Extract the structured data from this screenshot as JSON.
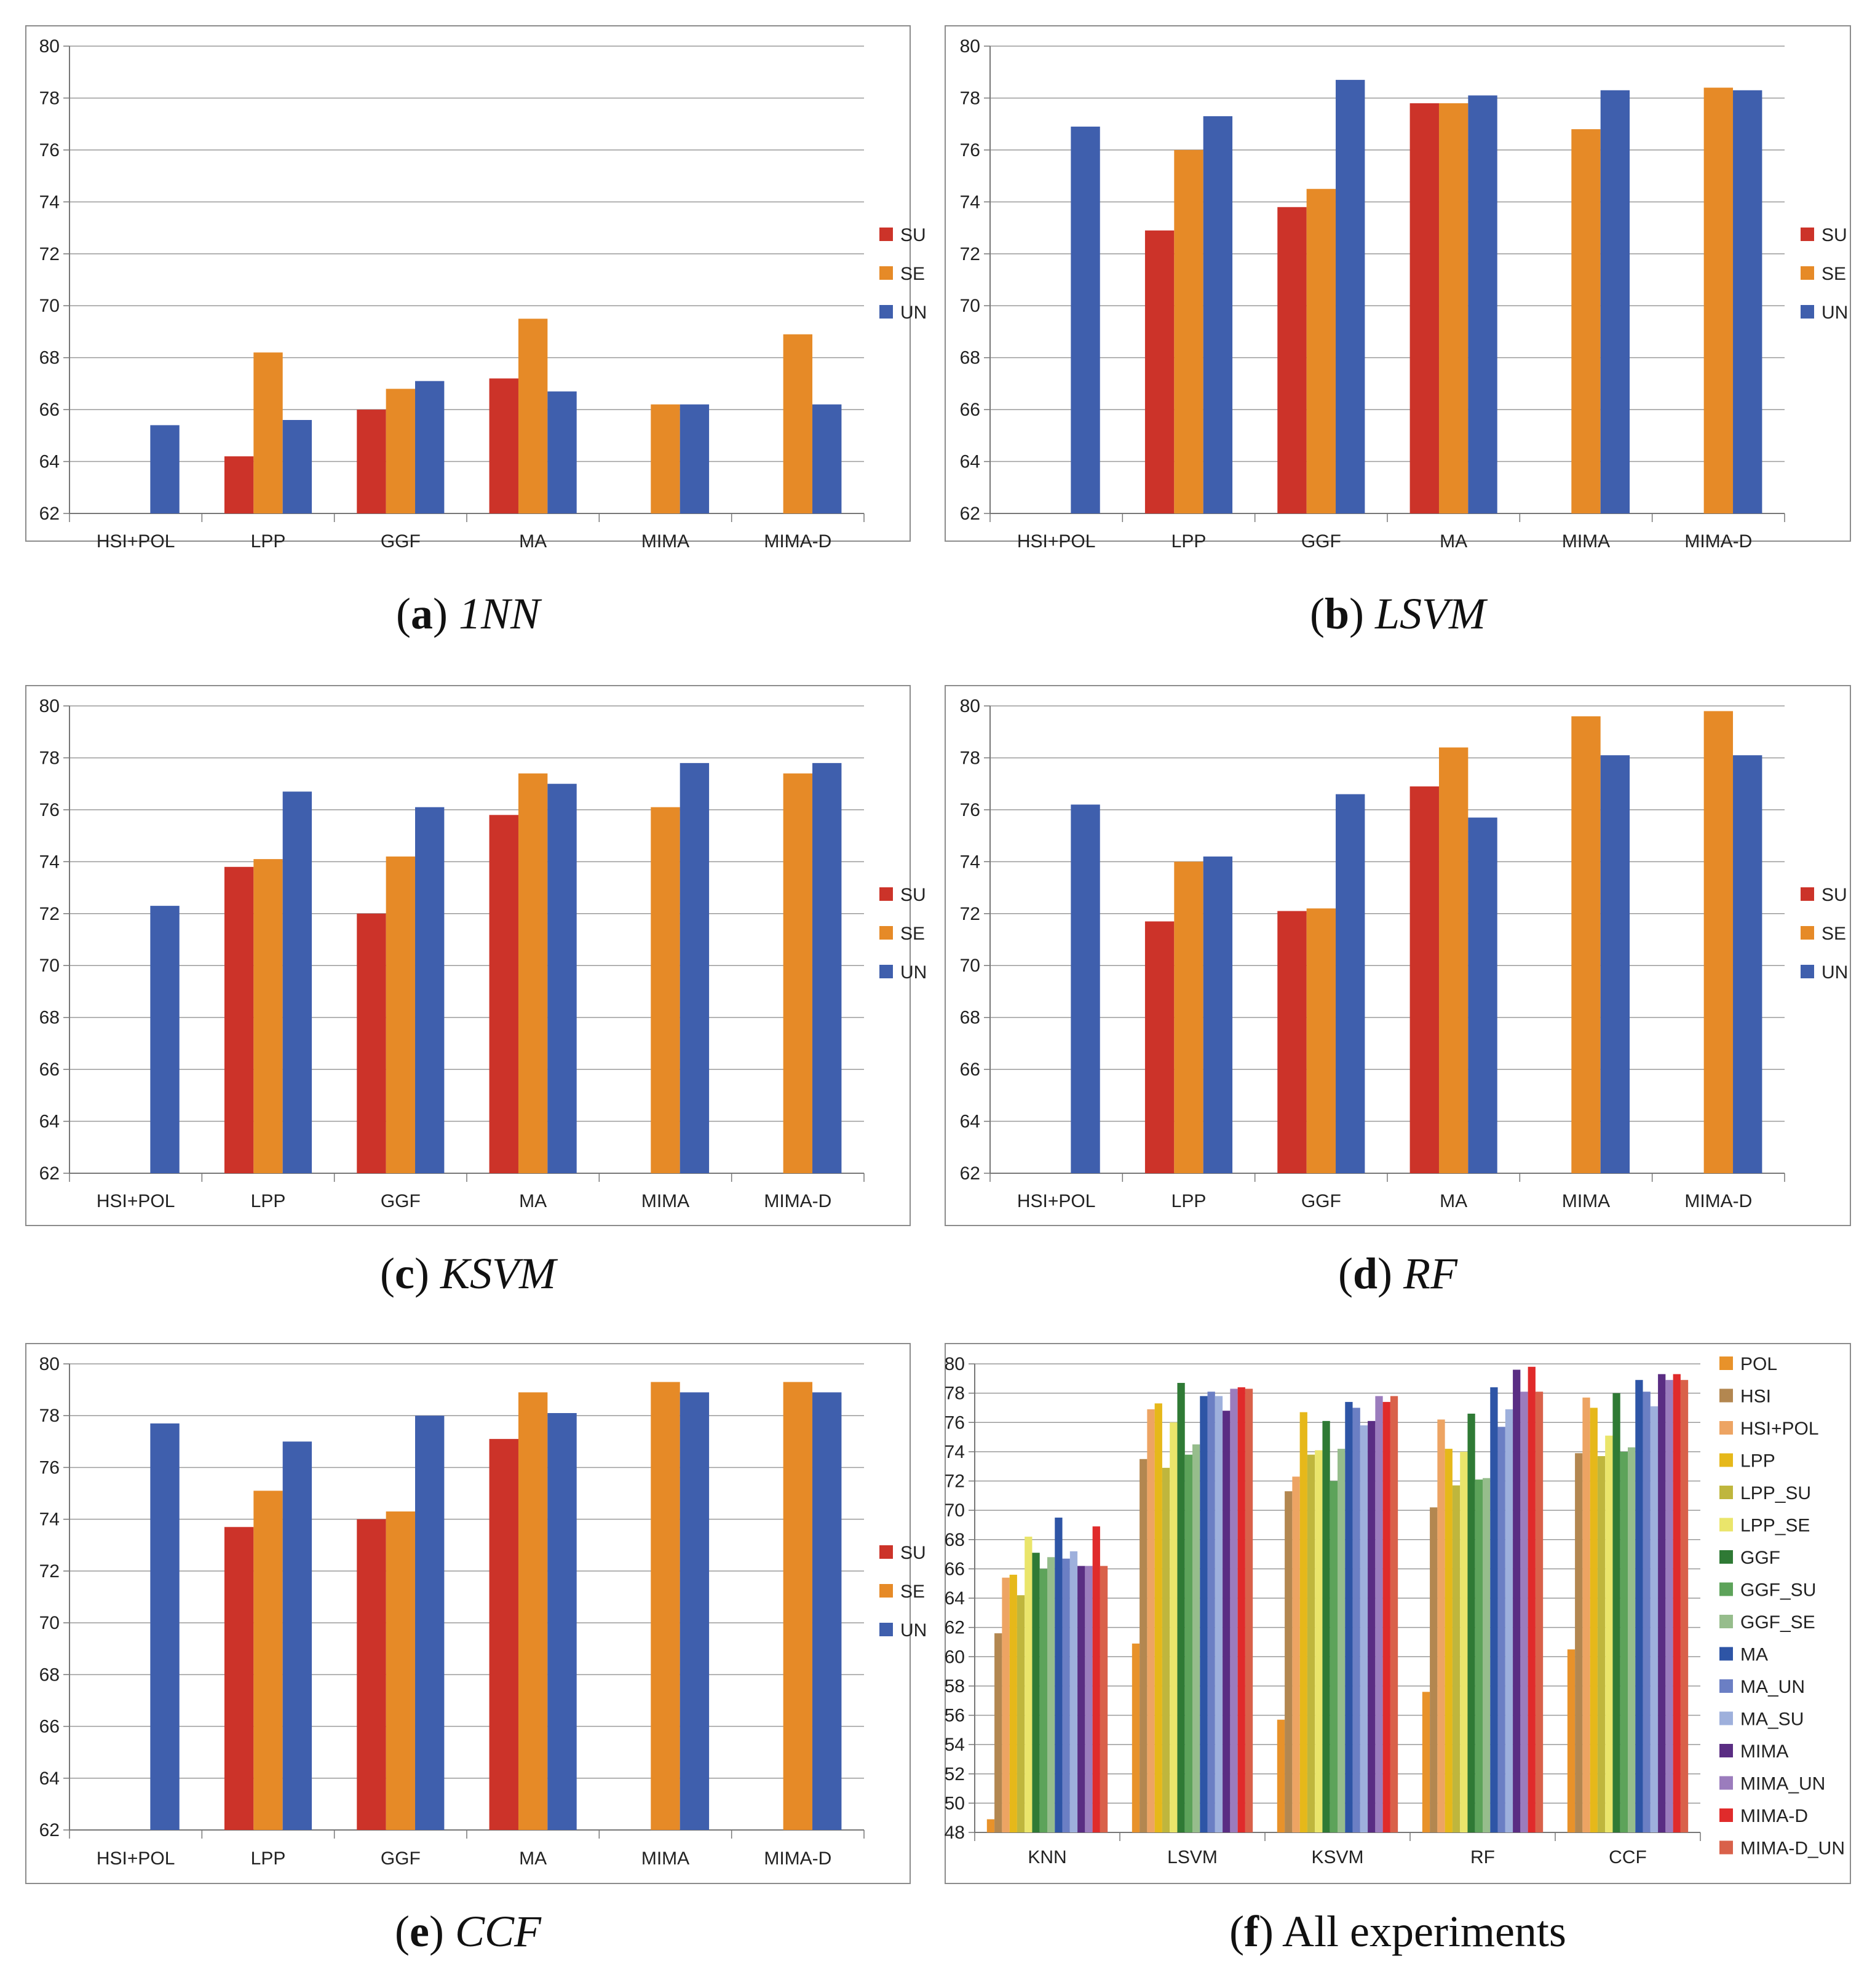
{
  "colors": {
    "SU": "#cc3329",
    "SE": "#e68a27",
    "UN": "#3f5fad",
    "POL": "#e8922a",
    "HSI": "#b38750",
    "HSI+POL": "#eda463",
    "LPP": "#e6b81a",
    "LPP_SU": "#bfb63d",
    "LPP_SE": "#eae56b",
    "GGF": "#2f7a35",
    "GGF_SU": "#5da35a",
    "GGF_SE": "#96bd8c",
    "MA": "#2e55a6",
    "MA_UN": "#6b7fc4",
    "MA_SU": "#9eb0dc",
    "MIMA": "#5a2d83",
    "MIMA_UN": "#9b7cbd",
    "MIMA-D": "#e02b2b",
    "MIMA-D_UN": "#d9614a"
  },
  "captions": [
    {
      "letter": "a",
      "name": "1NN"
    },
    {
      "letter": "b",
      "name": "LSVM"
    },
    {
      "letter": "c",
      "name": "KSVM"
    },
    {
      "letter": "d",
      "name": "RF"
    },
    {
      "letter": "e",
      "name": "CCF"
    },
    {
      "letter": "f",
      "name": "All experiments"
    }
  ],
  "chart_data": [
    {
      "type": "bar",
      "panel": "a",
      "categories": [
        "HSI+POL",
        "LPP",
        "GGF",
        "MA",
        "MIMA",
        "MIMA-D"
      ],
      "ylim": [
        62,
        80
      ],
      "yticks": [
        "62",
        "64",
        "66",
        "68",
        "70",
        "72",
        "74",
        "76",
        "78",
        "80"
      ],
      "series": [
        {
          "name": "SU",
          "values": [
            null,
            64.2,
            66.0,
            67.2,
            null,
            null
          ]
        },
        {
          "name": "SE",
          "values": [
            null,
            68.2,
            66.8,
            69.5,
            66.2,
            68.9
          ]
        },
        {
          "name": "UN",
          "values": [
            65.4,
            65.6,
            67.1,
            66.7,
            66.2,
            66.2
          ]
        }
      ]
    },
    {
      "type": "bar",
      "panel": "b",
      "categories": [
        "HSI+POL",
        "LPP",
        "GGF",
        "MA",
        "MIMA",
        "MIMA-D"
      ],
      "ylim": [
        62,
        80
      ],
      "yticks": [
        "62",
        "64",
        "66",
        "68",
        "70",
        "72",
        "74",
        "76",
        "78",
        "80"
      ],
      "series": [
        {
          "name": "SU",
          "values": [
            null,
            72.9,
            73.8,
            77.8,
            null,
            null
          ]
        },
        {
          "name": "SE",
          "values": [
            null,
            76.0,
            74.5,
            77.8,
            76.8,
            78.4
          ]
        },
        {
          "name": "UN",
          "values": [
            76.9,
            77.3,
            78.7,
            78.1,
            78.3,
            78.3
          ]
        }
      ]
    },
    {
      "type": "bar",
      "panel": "c",
      "categories": [
        "HSI+POL",
        "LPP",
        "GGF",
        "MA",
        "MIMA",
        "MIMA-D"
      ],
      "ylim": [
        62,
        80
      ],
      "yticks": [
        "62",
        "64",
        "66",
        "68",
        "70",
        "72",
        "74",
        "76",
        "78",
        "80"
      ],
      "series": [
        {
          "name": "SU",
          "values": [
            null,
            73.8,
            72.0,
            75.8,
            null,
            null
          ]
        },
        {
          "name": "SE",
          "values": [
            null,
            74.1,
            74.2,
            77.4,
            76.1,
            77.4
          ]
        },
        {
          "name": "UN",
          "values": [
            72.3,
            76.7,
            76.1,
            77.0,
            77.8,
            77.8
          ]
        }
      ]
    },
    {
      "type": "bar",
      "panel": "d",
      "categories": [
        "HSI+POL",
        "LPP",
        "GGF",
        "MA",
        "MIMA",
        "MIMA-D"
      ],
      "ylim": [
        62,
        80
      ],
      "yticks": [
        "62",
        "64",
        "66",
        "68",
        "70",
        "72",
        "74",
        "76",
        "78",
        "80"
      ],
      "series": [
        {
          "name": "SU",
          "values": [
            null,
            71.7,
            72.1,
            76.9,
            null,
            null
          ]
        },
        {
          "name": "SE",
          "values": [
            null,
            74.0,
            72.2,
            78.4,
            79.6,
            79.8
          ]
        },
        {
          "name": "UN",
          "values": [
            76.2,
            74.2,
            76.6,
            75.7,
            78.1,
            78.1
          ]
        }
      ]
    },
    {
      "type": "bar",
      "panel": "e",
      "categories": [
        "HSI+POL",
        "LPP",
        "GGF",
        "MA",
        "MIMA",
        "MIMA-D"
      ],
      "ylim": [
        62,
        80
      ],
      "yticks": [
        "62",
        "64",
        "66",
        "68",
        "70",
        "72",
        "74",
        "76",
        "78",
        "80"
      ],
      "series": [
        {
          "name": "SU",
          "values": [
            null,
            73.7,
            74.0,
            77.1,
            null,
            null
          ]
        },
        {
          "name": "SE",
          "values": [
            null,
            75.1,
            74.3,
            78.9,
            79.3,
            79.3
          ]
        },
        {
          "name": "UN",
          "values": [
            77.7,
            77.0,
            78.0,
            78.1,
            78.9,
            78.9
          ]
        }
      ]
    },
    {
      "type": "bar",
      "panel": "f",
      "categories": [
        "KNN",
        "LSVM",
        "KSVM",
        "RF",
        "CCF"
      ],
      "ylim": [
        48,
        80
      ],
      "yticks": [
        "48",
        "50",
        "52",
        "54",
        "56",
        "58",
        "60",
        "62",
        "64",
        "66",
        "68",
        "70",
        "72",
        "74",
        "76",
        "78",
        "80"
      ],
      "series": [
        {
          "name": "POL",
          "values": [
            48.9,
            60.9,
            55.7,
            57.6,
            60.5
          ]
        },
        {
          "name": "HSI",
          "values": [
            61.6,
            73.5,
            71.3,
            70.2,
            73.9
          ]
        },
        {
          "name": "HSI+POL",
          "values": [
            65.4,
            76.9,
            72.3,
            76.2,
            77.7
          ]
        },
        {
          "name": "LPP",
          "values": [
            65.6,
            77.3,
            76.7,
            74.2,
            77.0
          ]
        },
        {
          "name": "LPP_SU",
          "values": [
            64.2,
            72.9,
            73.8,
            71.7,
            73.7
          ]
        },
        {
          "name": "LPP_SE",
          "values": [
            68.2,
            76.0,
            74.1,
            74.0,
            75.1
          ]
        },
        {
          "name": "GGF",
          "values": [
            67.1,
            78.7,
            76.1,
            76.6,
            78.0
          ]
        },
        {
          "name": "GGF_SU",
          "values": [
            66.0,
            73.8,
            72.0,
            72.1,
            74.0
          ]
        },
        {
          "name": "GGF_SE",
          "values": [
            66.8,
            74.5,
            74.2,
            72.2,
            74.3
          ]
        },
        {
          "name": "MA",
          "values": [
            69.5,
            77.8,
            77.4,
            78.4,
            78.9
          ]
        },
        {
          "name": "MA_UN",
          "values": [
            66.7,
            78.1,
            77.0,
            75.7,
            78.1
          ]
        },
        {
          "name": "MA_SU",
          "values": [
            67.2,
            77.8,
            75.8,
            76.9,
            77.1
          ]
        },
        {
          "name": "MIMA",
          "values": [
            66.2,
            76.8,
            76.1,
            79.6,
            79.3
          ]
        },
        {
          "name": "MIMA_UN",
          "values": [
            66.2,
            78.3,
            77.8,
            78.1,
            78.9
          ]
        },
        {
          "name": "MIMA-D",
          "values": [
            68.9,
            78.4,
            77.4,
            79.8,
            79.3
          ]
        },
        {
          "name": "MIMA-D_UN",
          "values": [
            66.2,
            78.3,
            77.8,
            78.1,
            78.9
          ]
        }
      ]
    }
  ]
}
